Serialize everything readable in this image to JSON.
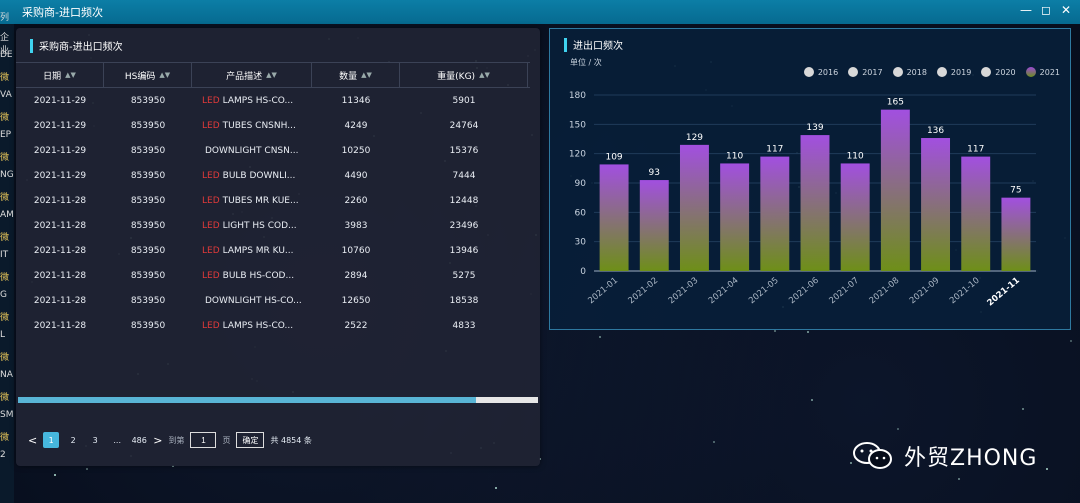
{
  "window": {
    "title": "采购商-进口频次",
    "min": "—",
    "max": "◻",
    "close": "✕"
  },
  "left_strip": [
    "列",
    "企业",
    "DE",
    "微",
    "VA",
    "微",
    "EP",
    "微",
    "NG",
    "微",
    "AM",
    "微",
    "IT",
    "微",
    "G",
    "微",
    "L",
    "微",
    "NA",
    "微",
    "SM",
    "微",
    "2"
  ],
  "table_panel": {
    "title": "采购商-进出口频次",
    "columns": [
      "日期",
      "HS编码",
      "产品描述",
      "数量",
      "重量(KG)"
    ],
    "rows": [
      {
        "date": "2021-11-29",
        "hs": "853950",
        "led": "LED",
        "desc": "LAMPS HS-CO...",
        "qty": "11346",
        "weight": "5901"
      },
      {
        "date": "2021-11-29",
        "hs": "853950",
        "led": "LED",
        "desc": "TUBES CNSNH...",
        "qty": "4249",
        "weight": "24764"
      },
      {
        "date": "2021-11-29",
        "hs": "853950",
        "led": "",
        "desc": "DOWNLIGHT CNSN...",
        "qty": "10250",
        "weight": "15376"
      },
      {
        "date": "2021-11-29",
        "hs": "853950",
        "led": "LED",
        "desc": "BULB DOWNLI...",
        "qty": "4490",
        "weight": "7444"
      },
      {
        "date": "2021-11-28",
        "hs": "853950",
        "led": "LED",
        "desc": "TUBES MR KUE...",
        "qty": "2260",
        "weight": "12448"
      },
      {
        "date": "2021-11-28",
        "hs": "853950",
        "led": "LED",
        "desc": "LIGHT HS COD...",
        "qty": "3983",
        "weight": "23496"
      },
      {
        "date": "2021-11-28",
        "hs": "853950",
        "led": "LED",
        "desc": "LAMPS MR KU...",
        "qty": "10760",
        "weight": "13946"
      },
      {
        "date": "2021-11-28",
        "hs": "853950",
        "led": "LED",
        "desc": "BULB HS-COD...",
        "qty": "2894",
        "weight": "5275"
      },
      {
        "date": "2021-11-28",
        "hs": "853950",
        "led": "",
        "desc": "DOWNLIGHT HS-CO...",
        "qty": "12650",
        "weight": "18538"
      },
      {
        "date": "2021-11-28",
        "hs": "853950",
        "led": "LED",
        "desc": "LAMPS HS-CO...",
        "qty": "2522",
        "weight": "4833"
      }
    ],
    "scroll_fraction": 0.88,
    "pager": {
      "prev": "<",
      "next": ">",
      "pages": [
        "1",
        "2",
        "3",
        "...",
        "486"
      ],
      "active": "1",
      "goto_label": "到第",
      "goto_value": "1",
      "page_suffix": "页",
      "confirm": "确定",
      "total": "共 4854 条"
    }
  },
  "chart_panel": {
    "title": "进出口频次",
    "unit": "单位 / 次",
    "legend": [
      "2016",
      "2017",
      "2018",
      "2019",
      "2020",
      "2021"
    ],
    "colors": {
      "bar_top": "#a24fe0",
      "bar_bottom": "#6e8f18",
      "axis": "#9fb0c3"
    }
  },
  "chart_data": {
    "type": "bar",
    "categories": [
      "2021-01",
      "2021-02",
      "2021-03",
      "2021-04",
      "2021-05",
      "2021-06",
      "2021-07",
      "2021-08",
      "2021-09",
      "2021-10",
      "2021-11"
    ],
    "series": [
      {
        "name": "2021",
        "values": [
          109,
          93,
          129,
          110,
          117,
          139,
          110,
          165,
          136,
          117,
          75
        ]
      }
    ],
    "ylim": [
      0,
      180
    ],
    "yticks": [
      0,
      30,
      60,
      90,
      120,
      150,
      180
    ],
    "title": "进出口频次",
    "ylabel": "单位 / 次",
    "legend_position": "top-right"
  },
  "watermark": {
    "text": "外贸ZHONG"
  }
}
